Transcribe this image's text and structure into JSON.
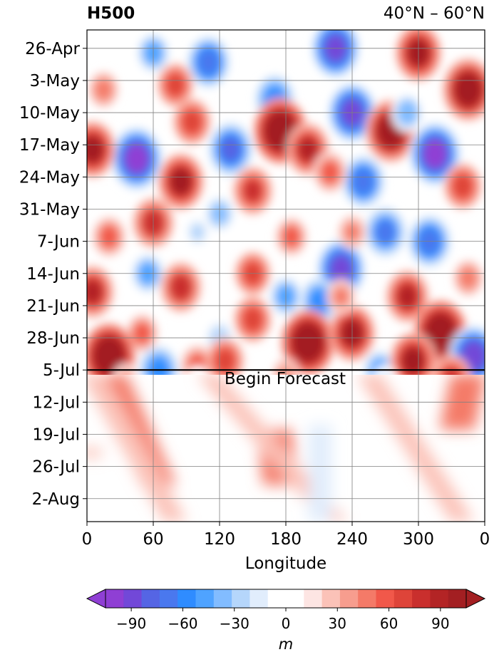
{
  "chart_data": {
    "type": "heatmap",
    "title_left": "H500",
    "title_right": "40°N – 60°N",
    "xlabel": "Longitude",
    "x_ticks": [
      "0",
      "60",
      "120",
      "180",
      "240",
      "300",
      "0"
    ],
    "x_tick_values": [
      0,
      60,
      120,
      180,
      240,
      300,
      360
    ],
    "xlim": [
      0,
      360
    ],
    "y_ticks": [
      "26-Apr",
      "3-May",
      "10-May",
      "17-May",
      "24-May",
      "31-May",
      "7-Jun",
      "14-Jun",
      "21-Jun",
      "28-Jun",
      "5-Jul",
      "12-Jul",
      "19-Jul",
      "26-Jul",
      "2-Aug"
    ],
    "y_tick_dates": [
      "2023-04-26",
      "2023-05-03",
      "2023-05-10",
      "2023-05-17",
      "2023-05-24",
      "2023-05-31",
      "2023-06-07",
      "2023-06-14",
      "2023-06-21",
      "2023-06-28",
      "2023-07-05",
      "2023-07-12",
      "2023-07-19",
      "2023-07-26",
      "2023-08-02"
    ],
    "ylim": [
      "2023-04-22",
      "2023-08-07"
    ],
    "y_inverted": true,
    "grid": true,
    "forecast_start": "2023-07-05",
    "annotation": "Begin Forecast",
    "colorbar": {
      "label": "m",
      "orientation": "horizontal",
      "range": [
        -105,
        105
      ],
      "level_step": 10,
      "extend": "both",
      "ticks": [
        "−90",
        "−60",
        "−30",
        "0",
        "30",
        "60",
        "90"
      ],
      "tick_values": [
        -90,
        -60,
        -30,
        0,
        30,
        60,
        90
      ],
      "colors": [
        "#8f3fd4",
        "#7248d8",
        "#5565e4",
        "#4a78ee",
        "#2f8cff",
        "#4fa3ff",
        "#82bcff",
        "#b5d6fb",
        "#e1edfc",
        "#ffffff",
        "#ffffff",
        "#fde5e3",
        "#fbc2b8",
        "#f79d8e",
        "#f47a68",
        "#f1584a",
        "#de4439",
        "#c92f2d",
        "#b32425",
        "#a31f22"
      ]
    },
    "anomaly_features": [
      {
        "lon": 60,
        "date": "2023-04-27",
        "value": -50
      },
      {
        "lon": 110,
        "date": "2023-04-29",
        "value": -70
      },
      {
        "lon": 225,
        "date": "2023-04-26",
        "value": -85
      },
      {
        "lon": 170,
        "date": "2023-05-07",
        "value": -60
      },
      {
        "lon": 240,
        "date": "2023-05-10",
        "value": -85
      },
      {
        "lon": 300,
        "date": "2023-04-27",
        "value": 80
      },
      {
        "lon": 345,
        "date": "2023-05-05",
        "value": 95
      },
      {
        "lon": 80,
        "date": "2023-05-04",
        "value": 50
      },
      {
        "lon": 15,
        "date": "2023-05-05",
        "value": 35
      },
      {
        "lon": 45,
        "date": "2023-05-20",
        "value": -95
      },
      {
        "lon": 175,
        "date": "2023-05-14",
        "value": 100
      },
      {
        "lon": 200,
        "date": "2023-05-18",
        "value": 70
      },
      {
        "lon": 275,
        "date": "2023-05-14",
        "value": 95
      },
      {
        "lon": 315,
        "date": "2023-05-19",
        "value": -95
      },
      {
        "lon": 290,
        "date": "2023-05-10",
        "value": -40
      },
      {
        "lon": 5,
        "date": "2023-05-18",
        "value": 80
      },
      {
        "lon": 85,
        "date": "2023-05-25",
        "value": 80
      },
      {
        "lon": 95,
        "date": "2023-05-12",
        "value": 55
      },
      {
        "lon": 130,
        "date": "2023-05-18",
        "value": -75
      },
      {
        "lon": 150,
        "date": "2023-05-27",
        "value": 60
      },
      {
        "lon": 250,
        "date": "2023-05-25",
        "value": -70
      },
      {
        "lon": 340,
        "date": "2023-05-26",
        "value": 55
      },
      {
        "lon": 220,
        "date": "2023-05-23",
        "value": 45
      },
      {
        "lon": 120,
        "date": "2023-06-01",
        "value": -35
      },
      {
        "lon": 60,
        "date": "2023-06-03",
        "value": 65
      },
      {
        "lon": 20,
        "date": "2023-06-06",
        "value": 45
      },
      {
        "lon": 270,
        "date": "2023-06-05",
        "value": -65
      },
      {
        "lon": 310,
        "date": "2023-06-07",
        "value": -70
      },
      {
        "lon": 230,
        "date": "2023-06-13",
        "value": -85
      },
      {
        "lon": 185,
        "date": "2023-06-06",
        "value": 40
      },
      {
        "lon": 240,
        "date": "2023-06-05",
        "value": 30
      },
      {
        "lon": 100,
        "date": "2023-06-05",
        "value": -25
      },
      {
        "lon": 55,
        "date": "2023-06-14",
        "value": -50
      },
      {
        "lon": 85,
        "date": "2023-06-17",
        "value": 65
      },
      {
        "lon": 150,
        "date": "2023-06-14",
        "value": 50
      },
      {
        "lon": 210,
        "date": "2023-06-20",
        "value": -55
      },
      {
        "lon": 180,
        "date": "2023-06-19",
        "value": -50
      },
      {
        "lon": 290,
        "date": "2023-06-19",
        "value": 70
      },
      {
        "lon": 5,
        "date": "2023-06-18",
        "value": 70
      },
      {
        "lon": 345,
        "date": "2023-06-15",
        "value": 35
      },
      {
        "lon": 150,
        "date": "2023-06-24",
        "value": 55
      },
      {
        "lon": 50,
        "date": "2023-06-27",
        "value": 40
      },
      {
        "lon": 120,
        "date": "2023-06-28",
        "value": -30
      },
      {
        "lon": 200,
        "date": "2023-06-29",
        "value": 100
      },
      {
        "lon": 240,
        "date": "2023-06-27",
        "value": 80
      },
      {
        "lon": 320,
        "date": "2023-06-27",
        "value": 100
      },
      {
        "lon": 20,
        "date": "2023-07-02",
        "value": 100
      },
      {
        "lon": 350,
        "date": "2023-07-02",
        "value": -90
      },
      {
        "lon": 65,
        "date": "2023-07-05",
        "value": -60
      },
      {
        "lon": 100,
        "date": "2023-07-04",
        "value": 45
      },
      {
        "lon": 125,
        "date": "2023-07-03",
        "value": 55
      },
      {
        "lon": 265,
        "date": "2023-07-05",
        "value": -50
      },
      {
        "lon": 295,
        "date": "2023-07-03",
        "value": 80
      },
      {
        "lon": 230,
        "date": "2023-06-19",
        "value": 30
      },
      {
        "lon": 100,
        "date": "2023-07-07",
        "value": -10
      },
      {
        "lon": 270,
        "date": "2023-07-07",
        "value": -15
      },
      {
        "lon": 180,
        "date": "2023-07-06",
        "value": 25
      },
      {
        "lon": 330,
        "date": "2023-07-07",
        "value": 60
      },
      {
        "lon": 35,
        "date": "2023-07-07",
        "value": 20
      }
    ],
    "forecast_features": [
      {
        "date_range": [
          "2023-07-06",
          "2023-07-30"
        ],
        "lon_start": 20,
        "lon_end": 65,
        "value": 30
      },
      {
        "date_range": [
          "2023-07-06",
          "2023-08-07"
        ],
        "lon_start": 5,
        "lon_end": 80,
        "value": 15
      },
      {
        "date_range": [
          "2023-07-18",
          "2023-07-30"
        ],
        "lon_start": 170,
        "lon_end": 175,
        "value": 30
      },
      {
        "date_range": [
          "2023-07-06",
          "2023-08-07"
        ],
        "lon_start": 110,
        "lon_end": 225,
        "value": 15
      },
      {
        "date_range": [
          "2023-07-06",
          "2023-08-07"
        ],
        "lon_start": 255,
        "lon_end": 340,
        "value": 15
      },
      {
        "date_range": [
          "2023-07-06",
          "2023-07-18"
        ],
        "lon_start": 345,
        "lon_end": 335,
        "value": 30
      },
      {
        "date_range": [
          "2023-07-17",
          "2023-08-07"
        ],
        "lon_start": 211,
        "lon_end": 211,
        "value": -15
      },
      {
        "date_range": [
          "2023-07-22",
          "2023-07-24"
        ],
        "lon_start": 3,
        "lon_end": 3,
        "value": 15
      }
    ]
  }
}
